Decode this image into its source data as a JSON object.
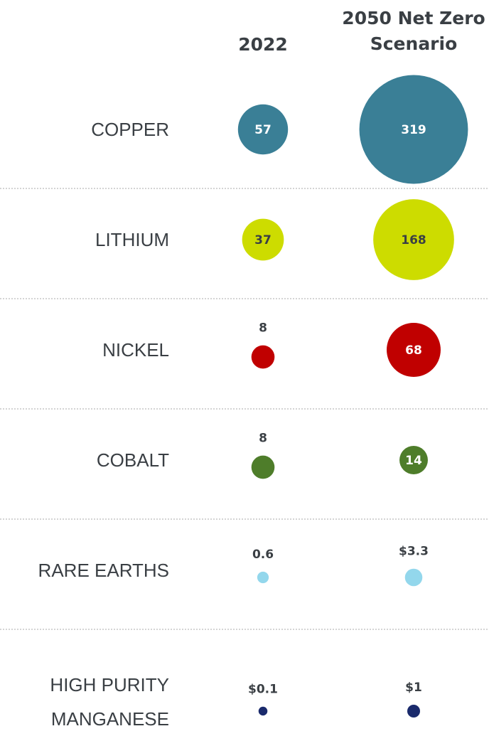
{
  "chart_data": {
    "type": "bubble",
    "categories": [
      "COPPER",
      "LITHIUM",
      "NICKEL",
      "COBALT",
      "RARE EARTHS",
      "HIGH PURITY MANGANESE"
    ],
    "colors": [
      "#3a7f96",
      "#cddc00",
      "#c00000",
      "#4e7d2a",
      "#93d7ec",
      "#1a2a6c"
    ],
    "label_colors": [
      "#ffffff",
      "#3a3f44",
      "#ffffff",
      "#ffffff",
      "#3a3f44",
      "#3a3f44"
    ],
    "series": [
      {
        "name": "2022",
        "values": [
          57,
          37,
          8,
          8,
          0.6,
          0.1
        ],
        "value_labels": [
          "57",
          "37",
          "8",
          "8",
          "0.6",
          "$0.1"
        ]
      },
      {
        "name": "2050 Net Zero Scenario",
        "values": [
          319,
          168,
          68,
          14,
          3.3,
          1
        ],
        "value_labels": [
          "319",
          "168",
          "68",
          "14",
          "$3.3",
          "$1"
        ]
      }
    ]
  }
}
